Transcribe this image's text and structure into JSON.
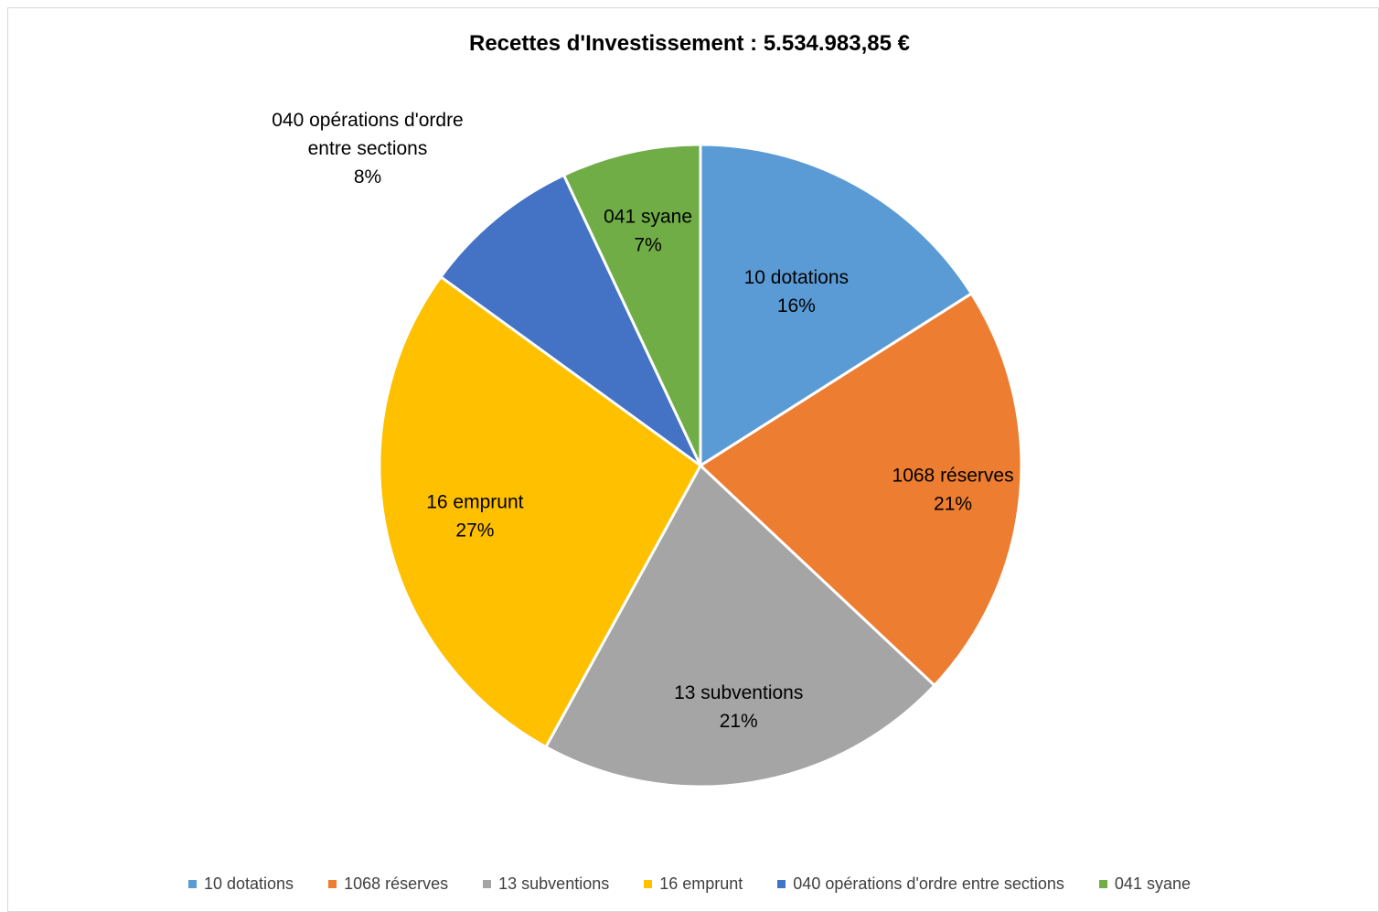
{
  "chart_data": {
    "type": "pie",
    "title": "Recettes d'Investissement : 5.534.983,85 €",
    "categories": [
      "10 dotations",
      "1068 réserves",
      "13 subventions",
      "16 emprunt",
      "040 opérations d'ordre entre sections",
      "041 syane"
    ],
    "values": [
      16,
      21,
      21,
      27,
      8,
      7
    ],
    "data_labels": [
      "16%",
      "21%",
      "21%",
      "27%",
      "8%",
      "7%"
    ],
    "colors": [
      "#5B9BD5",
      "#ED7D31",
      "#A5A5A5",
      "#FFC000",
      "#4472C4",
      "#70AD47"
    ],
    "legend_position": "bottom"
  }
}
